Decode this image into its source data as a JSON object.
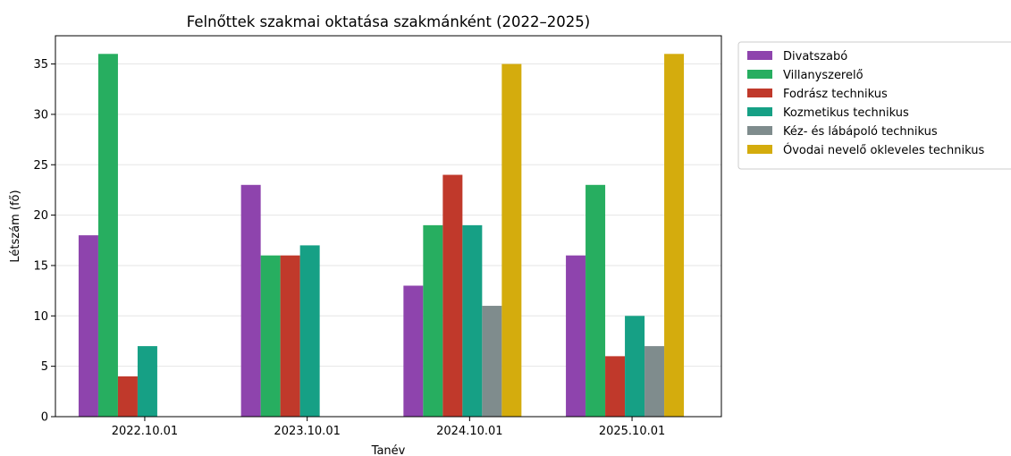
{
  "chart_data": {
    "type": "bar",
    "title": "Felnőttek szakmai oktatása szakmánként (2022–2025)",
    "xlabel": "Tanév",
    "ylabel": "Létszám (fő)",
    "categories": [
      "2022.10.01",
      "2023.10.01",
      "2024.10.01",
      "2025.10.01"
    ],
    "ylim": [
      0,
      37.8
    ],
    "yticks": [
      0,
      5,
      10,
      15,
      20,
      25,
      30,
      35
    ],
    "grid": "horizontal",
    "legend_position": "outside-right",
    "series": [
      {
        "name": "Divatszabó",
        "color": "#8e44ad",
        "values": [
          18,
          23,
          13,
          16
        ]
      },
      {
        "name": "Villanyszerelő",
        "color": "#27ae60",
        "values": [
          36,
          16,
          19,
          23
        ]
      },
      {
        "name": "Fodrász technikus",
        "color": "#c0392b",
        "values": [
          4,
          16,
          24,
          6
        ]
      },
      {
        "name": "Kozmetikus technikus",
        "color": "#16a085",
        "values": [
          7,
          17,
          19,
          10
        ]
      },
      {
        "name": "Kéz- és lábápoló technikus",
        "color": "#7f8c8d",
        "values": [
          0,
          0,
          11,
          7
        ]
      },
      {
        "name": "Óvodai nevelő okleveles technikus",
        "color": "#d4ac0d",
        "values": [
          0,
          0,
          35,
          36
        ]
      }
    ]
  }
}
